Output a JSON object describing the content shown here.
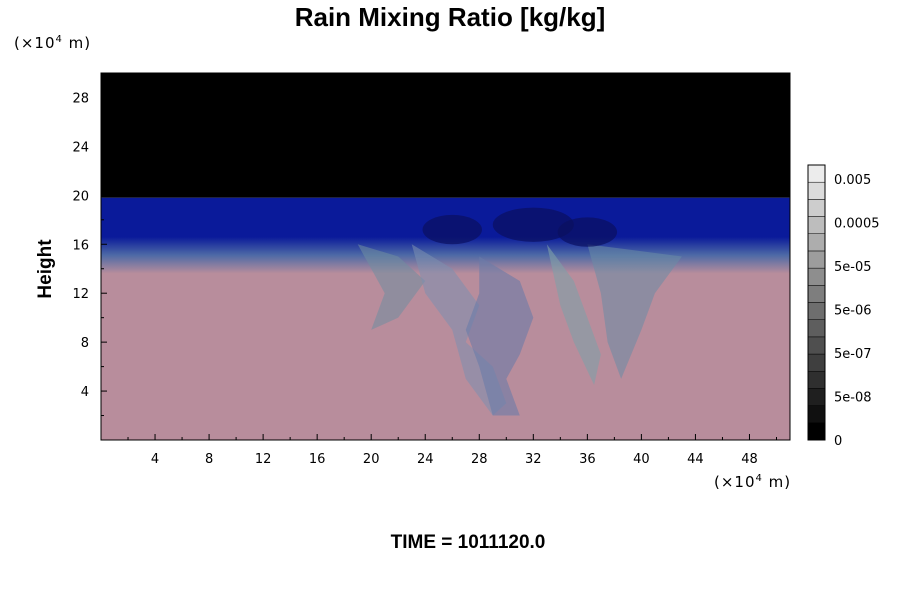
{
  "chart_data": {
    "type": "heatmap",
    "title": "Rain Mixing Ratio [kg/kg]",
    "ylabel": "Height",
    "xlabel": "",
    "x_unit_prefix": "(×10",
    "x_unit_exp": "4",
    "x_unit_suffix": " m)",
    "y_unit_prefix": "(×10",
    "y_unit_exp": "4",
    "y_unit_suffix": " m)",
    "xlim": [
      0,
      51
    ],
    "ylim": [
      0,
      30
    ],
    "x_ticks": [
      4,
      8,
      12,
      16,
      20,
      24,
      28,
      32,
      36,
      40,
      44,
      48
    ],
    "y_ticks": [
      4,
      8,
      12,
      16,
      20,
      24,
      28
    ],
    "layers": [
      {
        "name": "top",
        "y_from": 19.8,
        "y_to": 30,
        "color": "#000000"
      },
      {
        "name": "upper-band",
        "y_from": 16.2,
        "y_to": 19.8,
        "color": "#0a1a9a"
      },
      {
        "name": "transition",
        "y_from": 13.8,
        "y_to": 16.2,
        "color": "#5a72a8"
      },
      {
        "name": "lower",
        "y_from": 0,
        "y_to": 13.8,
        "color": "#b88d9c"
      }
    ],
    "colorbar": {
      "labels": [
        "0.005",
        "0.0005",
        "5e-05",
        "5e-06",
        "5e-07",
        "5e-08",
        "0"
      ],
      "levels": 16,
      "color_from": "#000000",
      "color_to": "#ececec"
    }
  },
  "footer": {
    "time_label": "TIME = 1011120.0"
  }
}
